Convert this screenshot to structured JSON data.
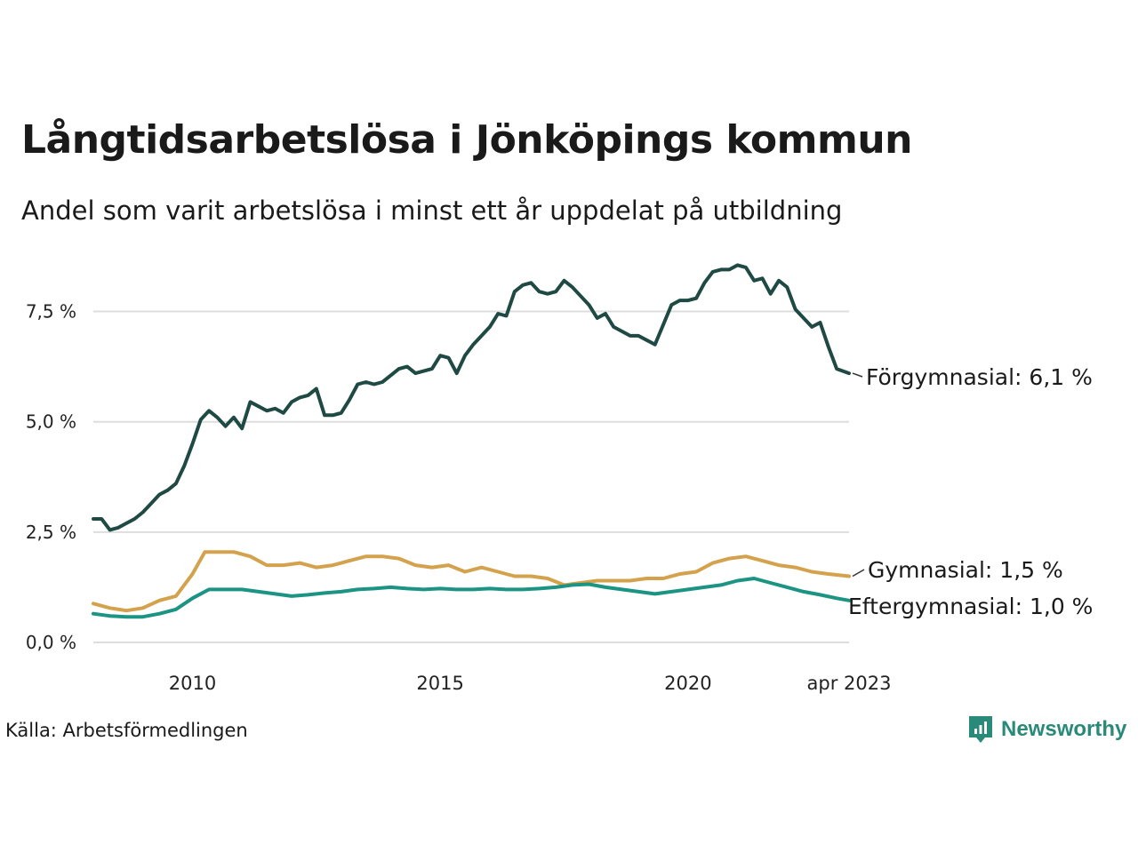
{
  "title": "Långtidsarbetslösa i Jönköpings kommun",
  "subtitle": "Andel som varit arbetslösa i minst ett år uppdelat på utbildning",
  "source": "Källa: Arbetsförmedlingen",
  "brand": "Newsworthy",
  "colors": {
    "forgymnasial": "#1f4a44",
    "gymnasial": "#d4a24c",
    "eftergymnasial": "#1b9483",
    "grid": "#dddddd",
    "brand": "#2a8a7a"
  },
  "chart_data": {
    "type": "line",
    "title": "Långtidsarbetslösa i Jönköpings kommun",
    "subtitle": "Andel som varit arbetslösa i minst ett år uppdelat på utbildning",
    "xlabel": "",
    "ylabel": "",
    "x_range": [
      "2008-01",
      "2023-04"
    ],
    "ylim": [
      0,
      8.8
    ],
    "y_ticks": [
      0,
      2.5,
      5.0,
      7.5
    ],
    "y_tick_labels": [
      "0,0 %",
      "2,5 %",
      "5,0 %",
      "7,5 %"
    ],
    "x_ticks": [
      "2010-01",
      "2015-01",
      "2020-01",
      "2023-04"
    ],
    "x_tick_labels": [
      "2010",
      "2015",
      "2020",
      "apr 2023"
    ],
    "grid": true,
    "legend": "end-labels",
    "series": [
      {
        "name": "Förgymnasial",
        "end_label": "Förgymnasial: 6,1 %",
        "color": "#1f4a44",
        "points": [
          [
            "2008-01",
            2.8
          ],
          [
            "2008-03",
            2.8
          ],
          [
            "2008-05",
            2.55
          ],
          [
            "2008-07",
            2.6
          ],
          [
            "2008-09",
            2.7
          ],
          [
            "2008-11",
            2.8
          ],
          [
            "2009-01",
            2.95
          ],
          [
            "2009-03",
            3.15
          ],
          [
            "2009-05",
            3.35
          ],
          [
            "2009-07",
            3.45
          ],
          [
            "2009-09",
            3.6
          ],
          [
            "2009-11",
            4.0
          ],
          [
            "2010-01",
            4.5
          ],
          [
            "2010-03",
            5.05
          ],
          [
            "2010-05",
            5.25
          ],
          [
            "2010-07",
            5.1
          ],
          [
            "2010-09",
            4.9
          ],
          [
            "2010-11",
            5.1
          ],
          [
            "2011-01",
            4.85
          ],
          [
            "2011-03",
            5.45
          ],
          [
            "2011-05",
            5.35
          ],
          [
            "2011-07",
            5.25
          ],
          [
            "2011-09",
            5.3
          ],
          [
            "2011-11",
            5.2
          ],
          [
            "2012-01",
            5.45
          ],
          [
            "2012-03",
            5.55
          ],
          [
            "2012-05",
            5.6
          ],
          [
            "2012-07",
            5.75
          ],
          [
            "2012-09",
            5.15
          ],
          [
            "2012-11",
            5.15
          ],
          [
            "2013-01",
            5.2
          ],
          [
            "2013-03",
            5.5
          ],
          [
            "2013-05",
            5.85
          ],
          [
            "2013-07",
            5.9
          ],
          [
            "2013-09",
            5.85
          ],
          [
            "2013-11",
            5.9
          ],
          [
            "2014-01",
            6.05
          ],
          [
            "2014-03",
            6.2
          ],
          [
            "2014-05",
            6.25
          ],
          [
            "2014-07",
            6.1
          ],
          [
            "2014-09",
            6.15
          ],
          [
            "2014-11",
            6.2
          ],
          [
            "2015-01",
            6.5
          ],
          [
            "2015-03",
            6.45
          ],
          [
            "2015-05",
            6.1
          ],
          [
            "2015-07",
            6.5
          ],
          [
            "2015-09",
            6.75
          ],
          [
            "2015-11",
            6.95
          ],
          [
            "2016-01",
            7.15
          ],
          [
            "2016-03",
            7.45
          ],
          [
            "2016-05",
            7.4
          ],
          [
            "2016-07",
            7.95
          ],
          [
            "2016-09",
            8.1
          ],
          [
            "2016-11",
            8.15
          ],
          [
            "2017-01",
            7.95
          ],
          [
            "2017-03",
            7.9
          ],
          [
            "2017-05",
            7.95
          ],
          [
            "2017-07",
            8.2
          ],
          [
            "2017-09",
            8.05
          ],
          [
            "2017-11",
            7.85
          ],
          [
            "2018-01",
            7.65
          ],
          [
            "2018-03",
            7.35
          ],
          [
            "2018-05",
            7.45
          ],
          [
            "2018-07",
            7.15
          ],
          [
            "2018-09",
            7.05
          ],
          [
            "2018-11",
            6.95
          ],
          [
            "2019-01",
            6.95
          ],
          [
            "2019-03",
            6.85
          ],
          [
            "2019-05",
            6.75
          ],
          [
            "2019-07",
            7.2
          ],
          [
            "2019-09",
            7.65
          ],
          [
            "2019-11",
            7.75
          ],
          [
            "2020-01",
            7.75
          ],
          [
            "2020-03",
            7.8
          ],
          [
            "2020-05",
            8.15
          ],
          [
            "2020-07",
            8.4
          ],
          [
            "2020-09",
            8.45
          ],
          [
            "2020-11",
            8.45
          ],
          [
            "2021-01",
            8.55
          ],
          [
            "2021-03",
            8.5
          ],
          [
            "2021-05",
            8.2
          ],
          [
            "2021-07",
            8.25
          ],
          [
            "2021-09",
            7.9
          ],
          [
            "2021-11",
            8.2
          ],
          [
            "2022-01",
            8.05
          ],
          [
            "2022-03",
            7.55
          ],
          [
            "2022-05",
            7.35
          ],
          [
            "2022-07",
            7.15
          ],
          [
            "2022-09",
            7.25
          ],
          [
            "2022-11",
            6.7
          ],
          [
            "2023-01",
            6.2
          ],
          [
            "2023-04",
            6.1
          ]
        ]
      },
      {
        "name": "Gymnasial",
        "end_label": "Gymnasial: 1,5 %",
        "color": "#d4a24c",
        "points": [
          [
            "2008-01",
            0.88
          ],
          [
            "2008-05",
            0.78
          ],
          [
            "2008-09",
            0.72
          ],
          [
            "2009-01",
            0.78
          ],
          [
            "2009-05",
            0.95
          ],
          [
            "2009-09",
            1.05
          ],
          [
            "2010-01",
            1.55
          ],
          [
            "2010-04",
            2.05
          ],
          [
            "2010-07",
            2.05
          ],
          [
            "2010-11",
            2.05
          ],
          [
            "2011-03",
            1.95
          ],
          [
            "2011-07",
            1.75
          ],
          [
            "2011-11",
            1.75
          ],
          [
            "2012-03",
            1.8
          ],
          [
            "2012-07",
            1.7
          ],
          [
            "2012-11",
            1.75
          ],
          [
            "2013-03",
            1.85
          ],
          [
            "2013-07",
            1.95
          ],
          [
            "2013-11",
            1.95
          ],
          [
            "2014-03",
            1.9
          ],
          [
            "2014-07",
            1.75
          ],
          [
            "2014-11",
            1.7
          ],
          [
            "2015-03",
            1.75
          ],
          [
            "2015-07",
            1.6
          ],
          [
            "2015-11",
            1.7
          ],
          [
            "2016-03",
            1.6
          ],
          [
            "2016-07",
            1.5
          ],
          [
            "2016-11",
            1.5
          ],
          [
            "2017-03",
            1.45
          ],
          [
            "2017-07",
            1.3
          ],
          [
            "2017-11",
            1.35
          ],
          [
            "2018-03",
            1.4
          ],
          [
            "2018-07",
            1.4
          ],
          [
            "2018-11",
            1.4
          ],
          [
            "2019-03",
            1.45
          ],
          [
            "2019-07",
            1.45
          ],
          [
            "2019-11",
            1.55
          ],
          [
            "2020-03",
            1.6
          ],
          [
            "2020-07",
            1.8
          ],
          [
            "2020-11",
            1.9
          ],
          [
            "2021-03",
            1.95
          ],
          [
            "2021-07",
            1.85
          ],
          [
            "2021-11",
            1.75
          ],
          [
            "2022-03",
            1.7
          ],
          [
            "2022-07",
            1.6
          ],
          [
            "2022-11",
            1.55
          ],
          [
            "2023-04",
            1.5
          ]
        ]
      },
      {
        "name": "Eftergymnasial",
        "end_label": "Eftergymnasial: 1,0 %",
        "color": "#1b9483",
        "points": [
          [
            "2008-01",
            0.65
          ],
          [
            "2008-05",
            0.6
          ],
          [
            "2008-09",
            0.58
          ],
          [
            "2009-01",
            0.58
          ],
          [
            "2009-05",
            0.65
          ],
          [
            "2009-09",
            0.75
          ],
          [
            "2010-01",
            1.0
          ],
          [
            "2010-05",
            1.2
          ],
          [
            "2010-09",
            1.2
          ],
          [
            "2011-01",
            1.2
          ],
          [
            "2011-05",
            1.15
          ],
          [
            "2011-09",
            1.1
          ],
          [
            "2012-01",
            1.05
          ],
          [
            "2012-05",
            1.08
          ],
          [
            "2012-09",
            1.12
          ],
          [
            "2013-01",
            1.15
          ],
          [
            "2013-05",
            1.2
          ],
          [
            "2013-09",
            1.22
          ],
          [
            "2014-01",
            1.25
          ],
          [
            "2014-05",
            1.22
          ],
          [
            "2014-09",
            1.2
          ],
          [
            "2015-01",
            1.22
          ],
          [
            "2015-05",
            1.2
          ],
          [
            "2015-09",
            1.2
          ],
          [
            "2016-01",
            1.22
          ],
          [
            "2016-05",
            1.2
          ],
          [
            "2016-09",
            1.2
          ],
          [
            "2017-01",
            1.22
          ],
          [
            "2017-05",
            1.25
          ],
          [
            "2017-09",
            1.3
          ],
          [
            "2018-01",
            1.32
          ],
          [
            "2018-05",
            1.25
          ],
          [
            "2018-09",
            1.2
          ],
          [
            "2019-01",
            1.15
          ],
          [
            "2019-05",
            1.1
          ],
          [
            "2019-09",
            1.15
          ],
          [
            "2020-01",
            1.2
          ],
          [
            "2020-05",
            1.25
          ],
          [
            "2020-09",
            1.3
          ],
          [
            "2021-01",
            1.4
          ],
          [
            "2021-05",
            1.45
          ],
          [
            "2021-09",
            1.35
          ],
          [
            "2022-01",
            1.25
          ],
          [
            "2022-05",
            1.15
          ],
          [
            "2022-09",
            1.08
          ],
          [
            "2023-01",
            1.0
          ],
          [
            "2023-04",
            0.95
          ]
        ]
      }
    ]
  }
}
